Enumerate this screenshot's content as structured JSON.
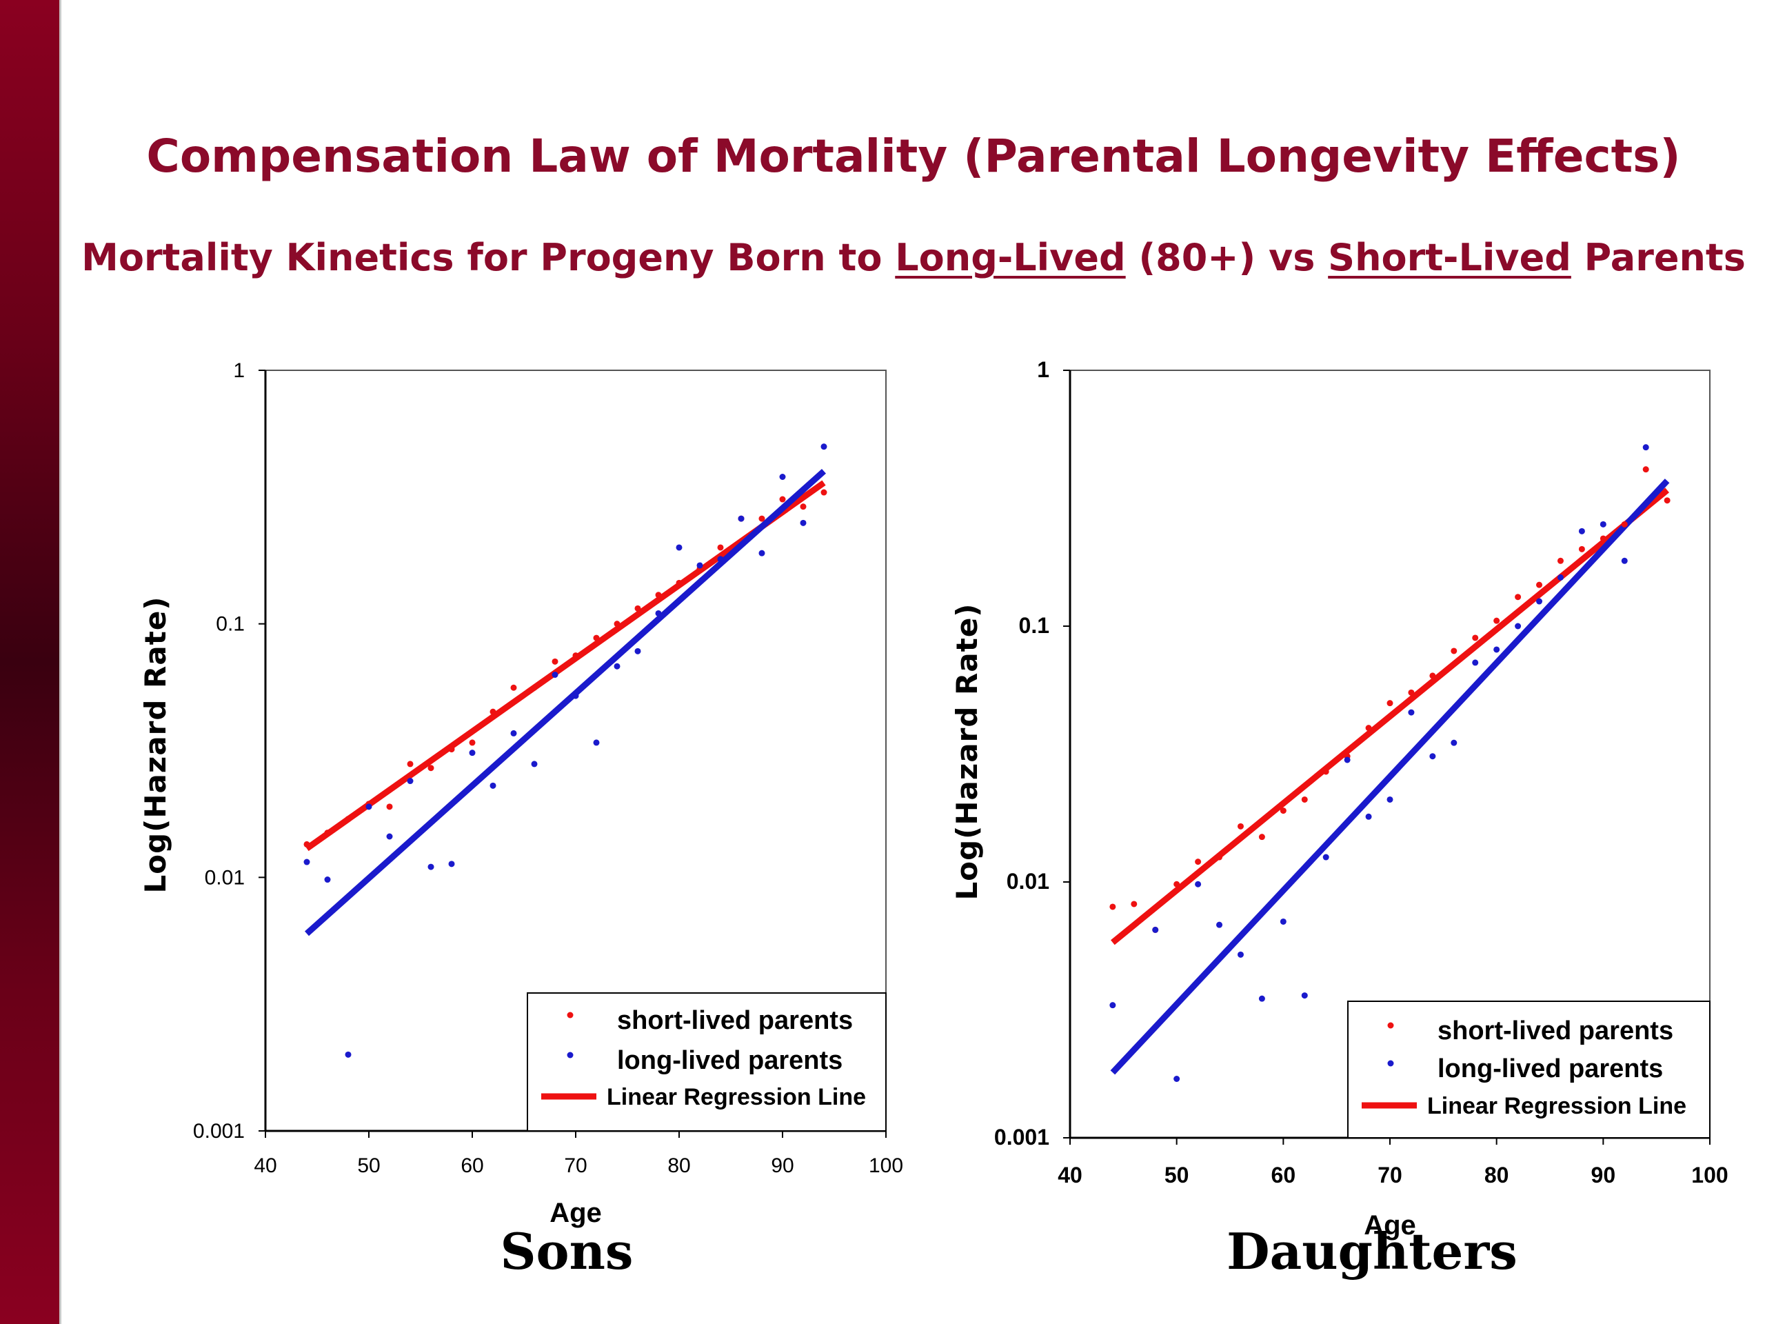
{
  "slide": {
    "title": "Compensation Law of Mortality (Parental Longevity Effects)",
    "subtitle_parts": [
      "Mortality Kinetics for Progeny Born to ",
      "Long-Lived",
      " (80+) vs ",
      "Short-Lived",
      " Parents"
    ],
    "colors": {
      "accent": "#8b0a2a",
      "short_lived": "#ee1111",
      "long_lived": "#1a1acc"
    }
  },
  "chart_data": [
    {
      "type": "scatter",
      "caption": "Sons",
      "xlabel": "Age",
      "ylabel": "Log(Hazard Rate)",
      "xlim": [
        40,
        100
      ],
      "ylim": [
        0.001,
        1
      ],
      "y_scale": "log",
      "x_ticks": [
        "40",
        "50",
        "60",
        "70",
        "80",
        "90",
        "100"
      ],
      "y_ticks": [
        "0.001",
        "0.01",
        "0.1",
        "1"
      ],
      "legend_placement": "bottom-right",
      "legend": [
        "short-lived parents",
        "long-lived parents",
        "Linear Regression Line"
      ],
      "series": [
        {
          "name": "short-lived parents",
          "color": "#ee1111",
          "x": [
            44,
            46,
            48,
            50,
            52,
            54,
            56,
            58,
            60,
            62,
            64,
            66,
            68,
            70,
            72,
            74,
            76,
            78,
            80,
            82,
            84,
            86,
            88,
            90,
            92,
            94
          ],
          "y": [
            0.0135,
            0.015,
            0.017,
            0.0195,
            0.019,
            0.028,
            0.027,
            0.032,
            0.034,
            0.045,
            0.056,
            0.056,
            0.071,
            0.075,
            0.088,
            0.1,
            0.115,
            0.13,
            0.145,
            0.165,
            0.2,
            0.26,
            0.26,
            0.31,
            0.29,
            0.33
          ]
        },
        {
          "name": "long-lived parents",
          "color": "#1a1acc",
          "x": [
            44,
            46,
            48,
            50,
            52,
            54,
            56,
            58,
            60,
            62,
            64,
            66,
            68,
            70,
            72,
            74,
            76,
            78,
            80,
            82,
            84,
            86,
            88,
            90,
            92,
            94
          ],
          "y": [
            0.0115,
            0.0098,
            0.002,
            0.019,
            0.0145,
            0.024,
            0.011,
            0.0113,
            0.031,
            0.023,
            0.037,
            0.028,
            0.063,
            0.052,
            0.034,
            0.068,
            0.078,
            0.11,
            0.2,
            0.17,
            0.18,
            0.26,
            0.19,
            0.38,
            0.25,
            0.5
          ]
        }
      ],
      "regression": [
        {
          "name": "short-lived parents",
          "color": "#ee1111",
          "x": [
            44,
            94
          ],
          "y": [
            0.013,
            0.36
          ]
        },
        {
          "name": "long-lived parents",
          "color": "#1a1acc",
          "x": [
            44,
            94
          ],
          "y": [
            0.006,
            0.4
          ]
        }
      ]
    },
    {
      "type": "scatter",
      "caption": "Daughters",
      "xlabel": "Age",
      "ylabel": "Log(Hazard Rate)",
      "xlim": [
        40,
        100
      ],
      "ylim": [
        0.001,
        1
      ],
      "y_scale": "log",
      "x_ticks": [
        "40",
        "50",
        "60",
        "70",
        "80",
        "90",
        "100"
      ],
      "y_ticks": [
        "0.001",
        "0.01",
        "0.1",
        "1"
      ],
      "legend_placement": "bottom-right",
      "legend": [
        "short-lived parents",
        "long-lived parents",
        "Linear Regression Line"
      ],
      "series": [
        {
          "name": "short-lived parents",
          "color": "#ee1111",
          "x": [
            44,
            46,
            48,
            50,
            52,
            54,
            56,
            58,
            60,
            62,
            64,
            66,
            68,
            70,
            72,
            74,
            76,
            78,
            80,
            82,
            84,
            86,
            88,
            90,
            92,
            94,
            96
          ],
          "y": [
            0.008,
            0.0082,
            0.0065,
            0.0098,
            0.012,
            0.0125,
            0.0165,
            0.015,
            0.019,
            0.021,
            0.027,
            0.031,
            0.04,
            0.05,
            0.055,
            0.064,
            0.08,
            0.09,
            0.105,
            0.13,
            0.145,
            0.18,
            0.2,
            0.22,
            0.25,
            0.41,
            0.31
          ]
        },
        {
          "name": "long-lived parents",
          "color": "#1a1acc",
          "x": [
            44,
            48,
            50,
            52,
            54,
            56,
            58,
            60,
            62,
            64,
            66,
            68,
            70,
            72,
            74,
            76,
            78,
            80,
            82,
            84,
            86,
            88,
            90,
            92,
            94
          ],
          "y": [
            0.0033,
            0.0065,
            0.0017,
            0.0098,
            0.0068,
            0.0052,
            0.0035,
            0.007,
            0.0036,
            0.0125,
            0.03,
            0.018,
            0.021,
            0.046,
            0.031,
            0.035,
            0.072,
            0.081,
            0.1,
            0.125,
            0.155,
            0.235,
            0.25,
            0.18,
            0.5
          ]
        }
      ],
      "regression": [
        {
          "name": "short-lived parents",
          "color": "#ee1111",
          "x": [
            44,
            96
          ],
          "y": [
            0.0058,
            0.34
          ]
        },
        {
          "name": "long-lived parents",
          "color": "#1a1acc",
          "x": [
            44,
            96
          ],
          "y": [
            0.0018,
            0.37
          ]
        }
      ]
    }
  ]
}
